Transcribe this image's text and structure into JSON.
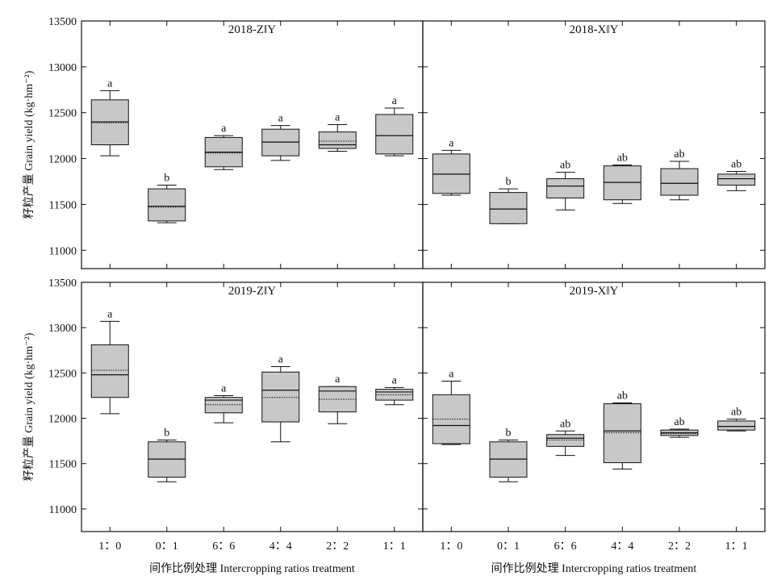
{
  "chart_data": [
    {
      "type": "box",
      "title": "2018-Z‖Y",
      "ylabel": "籽粒产量 Grain yield (kg·hm⁻²)",
      "xlabel": "",
      "ylim": [
        10800,
        13500
      ],
      "yticks": [
        "13500",
        "13000",
        "12500",
        "12000",
        "11500",
        "11000"
      ],
      "categories": [
        "1：0",
        "0：1",
        "6：6",
        "4：4",
        "2：2",
        "1：1"
      ],
      "boxes": [
        {
          "min": 12030,
          "q1": 12150,
          "median": 12400,
          "mean": 12390,
          "q3": 12640,
          "max": 12740,
          "letter": "a"
        },
        {
          "min": 11300,
          "q1": 11320,
          "median": 11480,
          "mean": 11470,
          "q3": 11670,
          "max": 11710,
          "letter": "b"
        },
        {
          "min": 11880,
          "q1": 11910,
          "median": 12070,
          "mean": 12060,
          "q3": 12230,
          "max": 12250,
          "letter": "a"
        },
        {
          "min": 11980,
          "q1": 12030,
          "median": 12180,
          "mean": 12180,
          "q3": 12320,
          "max": 12360,
          "letter": "a"
        },
        {
          "min": 12080,
          "q1": 12110,
          "median": 12150,
          "mean": 12190,
          "q3": 12290,
          "max": 12370,
          "letter": "a"
        },
        {
          "min": 12030,
          "q1": 12050,
          "median": 12250,
          "mean": 12250,
          "q3": 12480,
          "max": 12550,
          "letter": "a"
        }
      ]
    },
    {
      "type": "box",
      "title": "2018-X‖Y",
      "ylabel": "",
      "xlabel": "",
      "ylim": [
        10800,
        13500
      ],
      "yticks": [],
      "categories": [
        "1：0",
        "0：1",
        "6：6",
        "4：4",
        "2：2",
        "1：1"
      ],
      "boxes": [
        {
          "min": 11600,
          "q1": 11620,
          "median": 11830,
          "mean": 11830,
          "q3": 12050,
          "max": 12090,
          "letter": "a"
        },
        {
          "min": 11290,
          "q1": 11290,
          "median": 11450,
          "mean": 11450,
          "q3": 11630,
          "max": 11670,
          "letter": "b"
        },
        {
          "min": 11440,
          "q1": 11570,
          "median": 11700,
          "mean": 11700,
          "q3": 11780,
          "max": 11850,
          "letter": "ab"
        },
        {
          "min": 11510,
          "q1": 11550,
          "median": 11740,
          "mean": 11740,
          "q3": 11920,
          "max": 11930,
          "letter": "ab"
        },
        {
          "min": 11550,
          "q1": 11600,
          "median": 11730,
          "mean": 11730,
          "q3": 11890,
          "max": 11970,
          "letter": "ab"
        },
        {
          "min": 11650,
          "q1": 11710,
          "median": 11780,
          "mean": 11780,
          "q3": 11830,
          "max": 11860,
          "letter": "ab"
        }
      ]
    },
    {
      "type": "box",
      "title": "2019-Z‖Y",
      "ylabel": "籽粒产量 Grain yield (kg·hm⁻²)",
      "xlabel": "间作比例处理 Intercropping ratios treatment",
      "ylim": [
        10750,
        13500
      ],
      "yticks": [
        "13500",
        "13000",
        "12500",
        "12000",
        "11500",
        "11000"
      ],
      "categories": [
        "1：0",
        "0：1",
        "6：6",
        "4：4",
        "2：2",
        "1：1"
      ],
      "boxes": [
        {
          "min": 12050,
          "q1": 12230,
          "median": 12480,
          "mean": 12530,
          "q3": 12810,
          "max": 13070,
          "letter": "a"
        },
        {
          "min": 11300,
          "q1": 11350,
          "median": 11550,
          "mean": 11550,
          "q3": 11740,
          "max": 11760,
          "letter": "b"
        },
        {
          "min": 11950,
          "q1": 12060,
          "median": 12200,
          "mean": 12150,
          "q3": 12230,
          "max": 12250,
          "letter": "a"
        },
        {
          "min": 11740,
          "q1": 11960,
          "median": 12310,
          "mean": 12230,
          "q3": 12510,
          "max": 12570,
          "letter": "a"
        },
        {
          "min": 11940,
          "q1": 12070,
          "median": 12300,
          "mean": 12210,
          "q3": 12350,
          "max": 12350,
          "letter": "a"
        },
        {
          "min": 12150,
          "q1": 12200,
          "median": 12290,
          "mean": 12260,
          "q3": 12320,
          "max": 12340,
          "letter": "a"
        }
      ]
    },
    {
      "type": "box",
      "title": "2019-X‖Y",
      "ylabel": "",
      "xlabel": "间作比例处理 Intercropping ratios treatment",
      "ylim": [
        10750,
        13500
      ],
      "yticks": [],
      "categories": [
        "1：0",
        "0：1",
        "6：6",
        "4：4",
        "2：2",
        "1：1"
      ],
      "boxes": [
        {
          "min": 11710,
          "q1": 11720,
          "median": 11920,
          "mean": 11990,
          "q3": 12260,
          "max": 12410,
          "letter": "a"
        },
        {
          "min": 11300,
          "q1": 11350,
          "median": 11550,
          "mean": 11550,
          "q3": 11740,
          "max": 11760,
          "letter": "b"
        },
        {
          "min": 11590,
          "q1": 11690,
          "median": 11780,
          "mean": 11760,
          "q3": 11820,
          "max": 11860,
          "letter": "ab"
        },
        {
          "min": 11440,
          "q1": 11510,
          "median": 11860,
          "mean": 11840,
          "q3": 12160,
          "max": 12170,
          "letter": "ab"
        },
        {
          "min": 11790,
          "q1": 11810,
          "median": 11840,
          "mean": 11830,
          "q3": 11870,
          "max": 11880,
          "letter": "ab"
        },
        {
          "min": 11860,
          "q1": 11870,
          "median": 11910,
          "mean": 11910,
          "q3": 11970,
          "max": 11990,
          "letter": "ab"
        }
      ]
    }
  ],
  "colors": {
    "box_fill": "#c8c8c8",
    "stroke": "#111111",
    "background": "#ffffff"
  }
}
